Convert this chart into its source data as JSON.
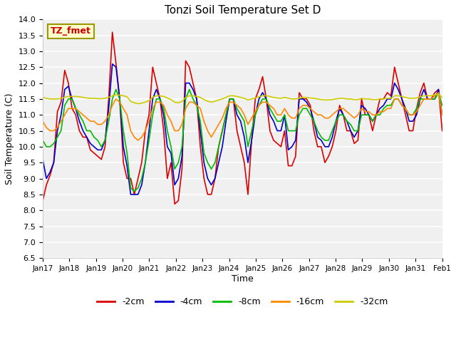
{
  "title": "Tonzi Soil Temperature Set D",
  "xlabel": "Time",
  "ylabel": "Soil Temperature (C)",
  "ylim": [
    6.5,
    14.0
  ],
  "yticks": [
    6.5,
    7.0,
    7.5,
    8.0,
    8.5,
    9.0,
    9.5,
    10.0,
    10.5,
    11.0,
    11.5,
    12.0,
    12.5,
    13.0,
    13.5,
    14.0
  ],
  "x_labels": [
    "Jan 17",
    "Jan 18",
    "Jan 19",
    "Jan 20",
    "Jan 21",
    "Jan 22",
    "Jan 23",
    "Jan 24",
    "Jan 25",
    "Jan 26",
    "Jan 27",
    "Jan 28",
    "Jan 29",
    "Jan 30",
    "Jan 31",
    "Feb 1"
  ],
  "legend_labels": [
    "-2cm",
    "-4cm",
    "-8cm",
    "-16cm",
    "-32cm"
  ],
  "legend_colors": [
    "#dd0000",
    "#0000cc",
    "#00bb00",
    "#ff8800",
    "#cccc00"
  ],
  "label_box_text": "TZ_fmet",
  "label_box_facecolor": "#ffffcc",
  "label_box_edgecolor": "#999900",
  "label_box_textcolor": "#cc0000",
  "fig_bg_color": "#ffffff",
  "plot_bg_color": "#f0f0f0",
  "grid_color": "#ffffff",
  "series_2cm": [
    8.3,
    8.8,
    9.1,
    9.5,
    11.1,
    11.4,
    12.4,
    12.0,
    11.2,
    11.0,
    10.5,
    10.3,
    10.3,
    9.9,
    9.8,
    9.7,
    9.6,
    10.0,
    11.5,
    13.6,
    12.6,
    11.5,
    9.5,
    9.0,
    9.0,
    8.5,
    9.0,
    9.5,
    10.5,
    11.0,
    12.5,
    12.0,
    11.5,
    10.5,
    9.0,
    9.5,
    8.2,
    8.3,
    9.3,
    12.7,
    12.5,
    12.0,
    11.5,
    10.0,
    9.0,
    8.5,
    8.5,
    9.0,
    10.0,
    10.5,
    11.0,
    11.5,
    11.5,
    10.5,
    10.0,
    9.5,
    8.5,
    10.2,
    11.5,
    11.8,
    12.2,
    11.5,
    10.5,
    10.2,
    10.1,
    10.0,
    10.5,
    9.4,
    9.4,
    9.7,
    11.7,
    11.5,
    11.5,
    11.3,
    10.5,
    10.0,
    10.0,
    9.5,
    9.7,
    10.0,
    10.5,
    11.3,
    11.0,
    10.5,
    10.5,
    10.1,
    10.2,
    11.5,
    11.0,
    11.0,
    10.5,
    11.0,
    11.5,
    11.5,
    11.7,
    11.6,
    12.5,
    12.0,
    11.5,
    11.0,
    10.5,
    10.5,
    11.2,
    11.7,
    12.0,
    11.5,
    11.5,
    11.7,
    11.8,
    10.5
  ],
  "series_4cm": [
    9.6,
    9.0,
    9.2,
    9.5,
    10.5,
    11.0,
    11.8,
    11.9,
    11.5,
    11.2,
    10.8,
    10.5,
    10.3,
    10.1,
    10.0,
    9.9,
    9.9,
    10.2,
    11.2,
    12.6,
    12.5,
    11.5,
    10.0,
    9.4,
    8.5,
    8.5,
    8.5,
    8.8,
    9.5,
    10.5,
    11.5,
    11.8,
    11.5,
    11.0,
    10.0,
    9.8,
    8.8,
    9.0,
    9.7,
    12.0,
    12.0,
    11.8,
    11.5,
    10.5,
    9.5,
    9.0,
    8.8,
    9.0,
    9.5,
    10.0,
    10.8,
    11.5,
    11.5,
    11.0,
    10.8,
    10.3,
    9.5,
    10.2,
    11.0,
    11.5,
    11.7,
    11.5,
    11.0,
    10.8,
    10.5,
    10.5,
    11.0,
    9.9,
    10.0,
    10.2,
    11.5,
    11.5,
    11.4,
    11.2,
    10.8,
    10.3,
    10.2,
    10.0,
    10.0,
    10.3,
    10.8,
    11.2,
    11.0,
    10.8,
    10.5,
    10.3,
    10.5,
    11.3,
    11.2,
    11.0,
    10.8,
    11.0,
    11.2,
    11.3,
    11.5,
    11.5,
    12.0,
    11.8,
    11.5,
    11.2,
    10.8,
    10.8,
    11.0,
    11.5,
    11.8,
    11.5,
    11.5,
    11.5,
    11.8,
    11.0
  ],
  "series_8cm": [
    10.2,
    10.0,
    10.0,
    10.1,
    10.3,
    10.5,
    11.3,
    11.5,
    11.5,
    11.2,
    11.0,
    10.8,
    10.5,
    10.5,
    10.3,
    10.2,
    10.0,
    10.2,
    10.8,
    11.5,
    11.8,
    11.5,
    10.5,
    9.8,
    8.7,
    8.6,
    8.7,
    9.0,
    9.5,
    10.2,
    11.0,
    11.5,
    11.5,
    11.2,
    10.5,
    10.0,
    9.3,
    9.5,
    10.0,
    11.5,
    11.8,
    11.5,
    11.3,
    10.8,
    9.8,
    9.5,
    9.3,
    9.5,
    10.0,
    10.5,
    11.0,
    11.5,
    11.5,
    11.2,
    11.0,
    10.8,
    10.0,
    10.5,
    11.0,
    11.3,
    11.5,
    11.5,
    11.2,
    11.0,
    10.8,
    10.8,
    11.0,
    10.5,
    10.5,
    10.5,
    11.0,
    11.2,
    11.2,
    11.0,
    10.8,
    10.5,
    10.3,
    10.2,
    10.2,
    10.5,
    10.8,
    11.0,
    11.0,
    10.8,
    10.7,
    10.5,
    10.5,
    11.0,
    11.0,
    11.0,
    10.8,
    11.0,
    11.0,
    11.2,
    11.3,
    11.3,
    11.5,
    11.5,
    11.3,
    11.2,
    11.0,
    11.0,
    11.2,
    11.5,
    11.5,
    11.5,
    11.5,
    11.5,
    11.7,
    11.3
  ],
  "series_16cm": [
    10.8,
    10.6,
    10.5,
    10.5,
    10.6,
    10.8,
    11.0,
    11.2,
    11.2,
    11.2,
    11.1,
    11.0,
    10.9,
    10.8,
    10.8,
    10.7,
    10.7,
    10.8,
    11.0,
    11.3,
    11.5,
    11.4,
    11.2,
    11.0,
    10.5,
    10.3,
    10.2,
    10.3,
    10.5,
    10.8,
    11.2,
    11.4,
    11.4,
    11.3,
    11.0,
    10.8,
    10.5,
    10.5,
    10.7,
    11.2,
    11.4,
    11.4,
    11.3,
    11.2,
    10.8,
    10.5,
    10.3,
    10.5,
    10.7,
    10.9,
    11.2,
    11.4,
    11.4,
    11.3,
    11.2,
    11.0,
    10.7,
    10.9,
    11.1,
    11.3,
    11.4,
    11.4,
    11.3,
    11.2,
    11.0,
    11.0,
    11.2,
    11.0,
    10.9,
    10.9,
    11.2,
    11.3,
    11.3,
    11.2,
    11.1,
    11.0,
    11.0,
    10.9,
    10.9,
    11.0,
    11.1,
    11.2,
    11.2,
    11.1,
    11.0,
    10.9,
    11.0,
    11.2,
    11.1,
    11.1,
    11.0,
    11.0,
    11.1,
    11.1,
    11.2,
    11.2,
    11.5,
    11.5,
    11.3,
    11.2,
    11.0,
    11.0,
    11.1,
    11.3,
    11.5,
    11.5,
    11.5,
    11.6,
    11.7,
    11.0
  ],
  "series_32cm": [
    11.55,
    11.52,
    11.5,
    11.5,
    11.5,
    11.52,
    11.55,
    11.58,
    11.58,
    11.58,
    11.57,
    11.55,
    11.53,
    11.52,
    11.52,
    11.51,
    11.51,
    11.52,
    11.55,
    11.6,
    11.63,
    11.62,
    11.6,
    11.57,
    11.42,
    11.38,
    11.35,
    11.37,
    11.4,
    11.45,
    11.55,
    11.6,
    11.6,
    11.58,
    11.53,
    11.48,
    11.4,
    11.38,
    11.42,
    11.55,
    11.6,
    11.6,
    11.58,
    11.55,
    11.48,
    11.43,
    11.4,
    11.43,
    11.47,
    11.5,
    11.55,
    11.6,
    11.6,
    11.58,
    11.55,
    11.52,
    11.47,
    11.5,
    11.53,
    11.57,
    11.6,
    11.6,
    11.58,
    11.55,
    11.53,
    11.52,
    11.55,
    11.52,
    11.5,
    11.5,
    11.52,
    11.55,
    11.55,
    11.53,
    11.52,
    11.5,
    11.48,
    11.47,
    11.47,
    11.48,
    11.5,
    11.52,
    11.52,
    11.5,
    11.5,
    11.48,
    11.48,
    11.52,
    11.5,
    11.5,
    11.48,
    11.48,
    11.5,
    11.5,
    11.52,
    11.52,
    11.6,
    11.6,
    11.58,
    11.55,
    11.52,
    11.52,
    11.53,
    11.57,
    11.6,
    11.6,
    11.6,
    11.63,
    11.65,
    11.55
  ]
}
